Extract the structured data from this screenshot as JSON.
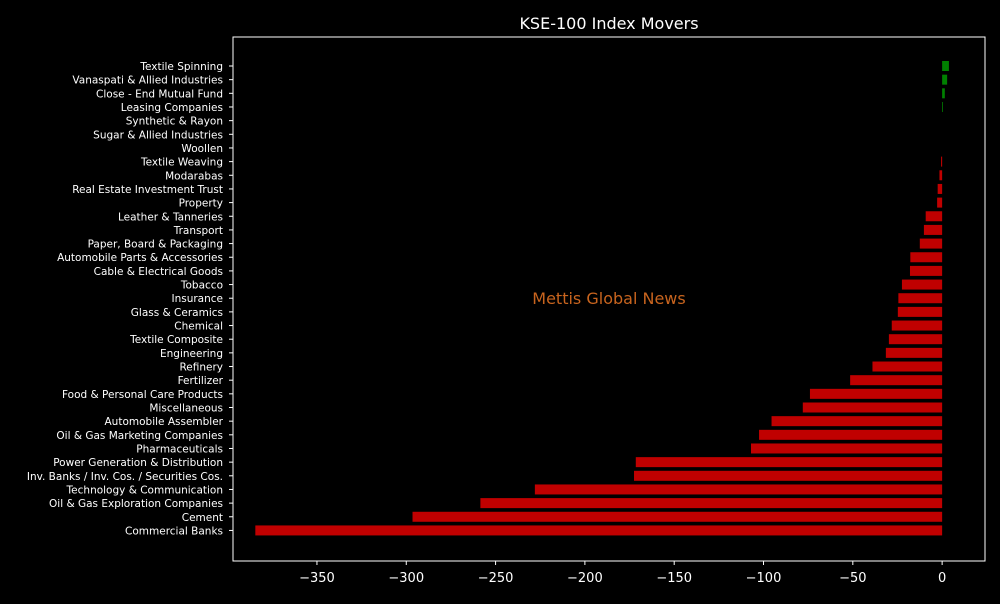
{
  "chart_data": {
    "type": "bar",
    "orientation": "horizontal",
    "title": "KSE-100 Index Movers",
    "xlabel": "",
    "ylabel": "",
    "xlim": [
      -397,
      24
    ],
    "xticks": [
      -350,
      -300,
      -250,
      -200,
      -150,
      -100,
      -50,
      0
    ],
    "xtick_labels": [
      "−350",
      "−300",
      "−250",
      "−200",
      "−150",
      "−100",
      "−50",
      "0"
    ],
    "grid": false,
    "colors": {
      "positive": "#008000",
      "negative": "#c00000",
      "background": "#000000",
      "text": "#ffffff",
      "watermark": "#c8641e"
    },
    "watermark": "Mettis Global News",
    "categories": [
      "Textile Spinning",
      "Vanaspati & Allied Industries",
      "Close - End Mutual Fund",
      "Leasing Companies",
      "Synthetic & Rayon",
      "Sugar & Allied Industries",
      "Woollen",
      "Textile Weaving",
      "Modarabas",
      "Real Estate Investment Trust",
      "Property",
      "Leather & Tanneries",
      "Transport",
      "Paper, Board & Packaging",
      "Automobile Parts & Accessories",
      "Cable & Electrical Goods",
      "Tobacco",
      "Insurance",
      "Glass & Ceramics",
      "Chemical",
      "Textile Composite",
      "Engineering",
      "Refinery",
      "Fertilizer",
      "Food & Personal Care Products",
      "Miscellaneous",
      "Automobile Assembler",
      "Oil & Gas Marketing Companies",
      "Pharmaceuticals",
      "Power Generation & Distribution",
      "Inv. Banks / Inv. Cos. / Securities Cos.",
      "Technology & Communication",
      "Oil & Gas Exploration Companies",
      "Cement",
      "Commercial Banks"
    ],
    "values": [
      3.8,
      2.8,
      1.5,
      0.4,
      0,
      0,
      0,
      -0.6,
      -1.5,
      -2.5,
      -2.8,
      -9.2,
      -10.2,
      -12.5,
      -17.8,
      -18,
      -22.5,
      -24.5,
      -24.8,
      -28.2,
      -29.8,
      -31.5,
      -39,
      -51.5,
      -74,
      -78,
      -95.5,
      -102.5,
      -107,
      -171.5,
      -172.5,
      -228,
      -258.5,
      -296.5,
      -384.5
    ]
  }
}
